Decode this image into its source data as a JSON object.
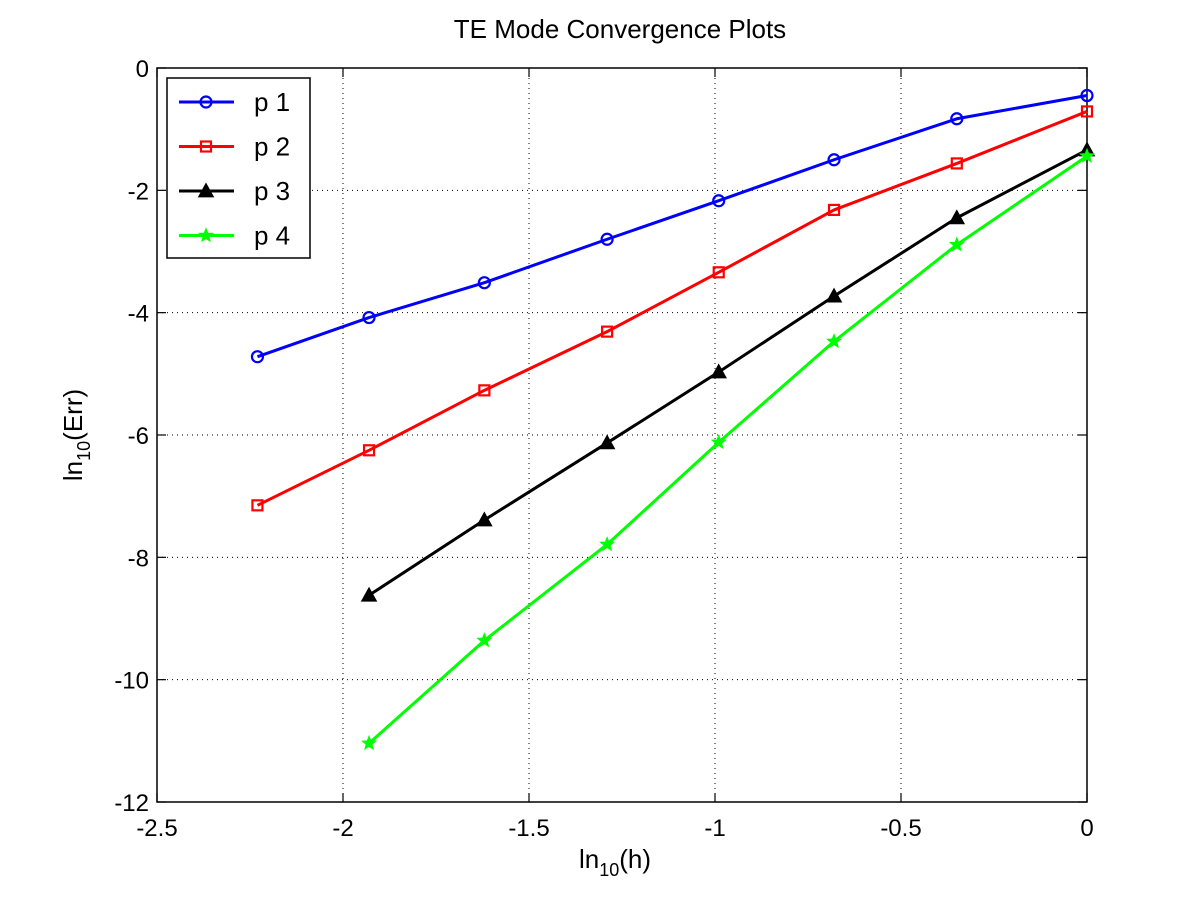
{
  "chart_data": {
    "type": "line",
    "title": "TE Mode Convergence Plots",
    "xlabel": {
      "base": "ln",
      "sub": "10",
      "rest": "(h)"
    },
    "ylabel": {
      "base": "ln",
      "sub": "10",
      "rest": "(Err)"
    },
    "xlim": [
      -2.5,
      0
    ],
    "ylim": [
      -12,
      0
    ],
    "xticks": [
      -2.5,
      -2,
      -1.5,
      -1,
      -0.5,
      0
    ],
    "yticks": [
      -12,
      -10,
      -8,
      -6,
      -4,
      -2,
      0
    ],
    "grid": true,
    "legend_position": "top-left",
    "series": [
      {
        "name": "p 1",
        "color": "#0000ff",
        "marker": "circle",
        "x": [
          -2.23,
          -1.93,
          -1.62,
          -1.29,
          -0.99,
          -0.68,
          -0.35,
          0.0
        ],
        "y": [
          -4.72,
          -4.08,
          -3.51,
          -2.8,
          -2.17,
          -1.5,
          -0.83,
          -0.45
        ]
      },
      {
        "name": "p 2",
        "color": "#ff0000",
        "marker": "square",
        "x": [
          -2.23,
          -1.93,
          -1.62,
          -1.29,
          -0.99,
          -0.68,
          -0.35,
          0.0
        ],
        "y": [
          -7.15,
          -6.25,
          -5.27,
          -4.31,
          -3.34,
          -2.32,
          -1.56,
          -0.71
        ]
      },
      {
        "name": "p 3",
        "color": "#000000",
        "marker": "triangle",
        "x": [
          -1.93,
          -1.62,
          -1.29,
          -0.99,
          -0.68,
          -0.35,
          0.0
        ],
        "y": [
          -8.62,
          -7.39,
          -6.13,
          -4.97,
          -3.73,
          -2.45,
          -1.34
        ]
      },
      {
        "name": "p 4",
        "color": "#00ff00",
        "marker": "star",
        "x": [
          -1.93,
          -1.62,
          -1.29,
          -0.99,
          -0.68,
          -0.35,
          0.0
        ],
        "y": [
          -11.04,
          -9.36,
          -7.79,
          -6.12,
          -4.47,
          -2.89,
          -1.44
        ]
      }
    ]
  }
}
